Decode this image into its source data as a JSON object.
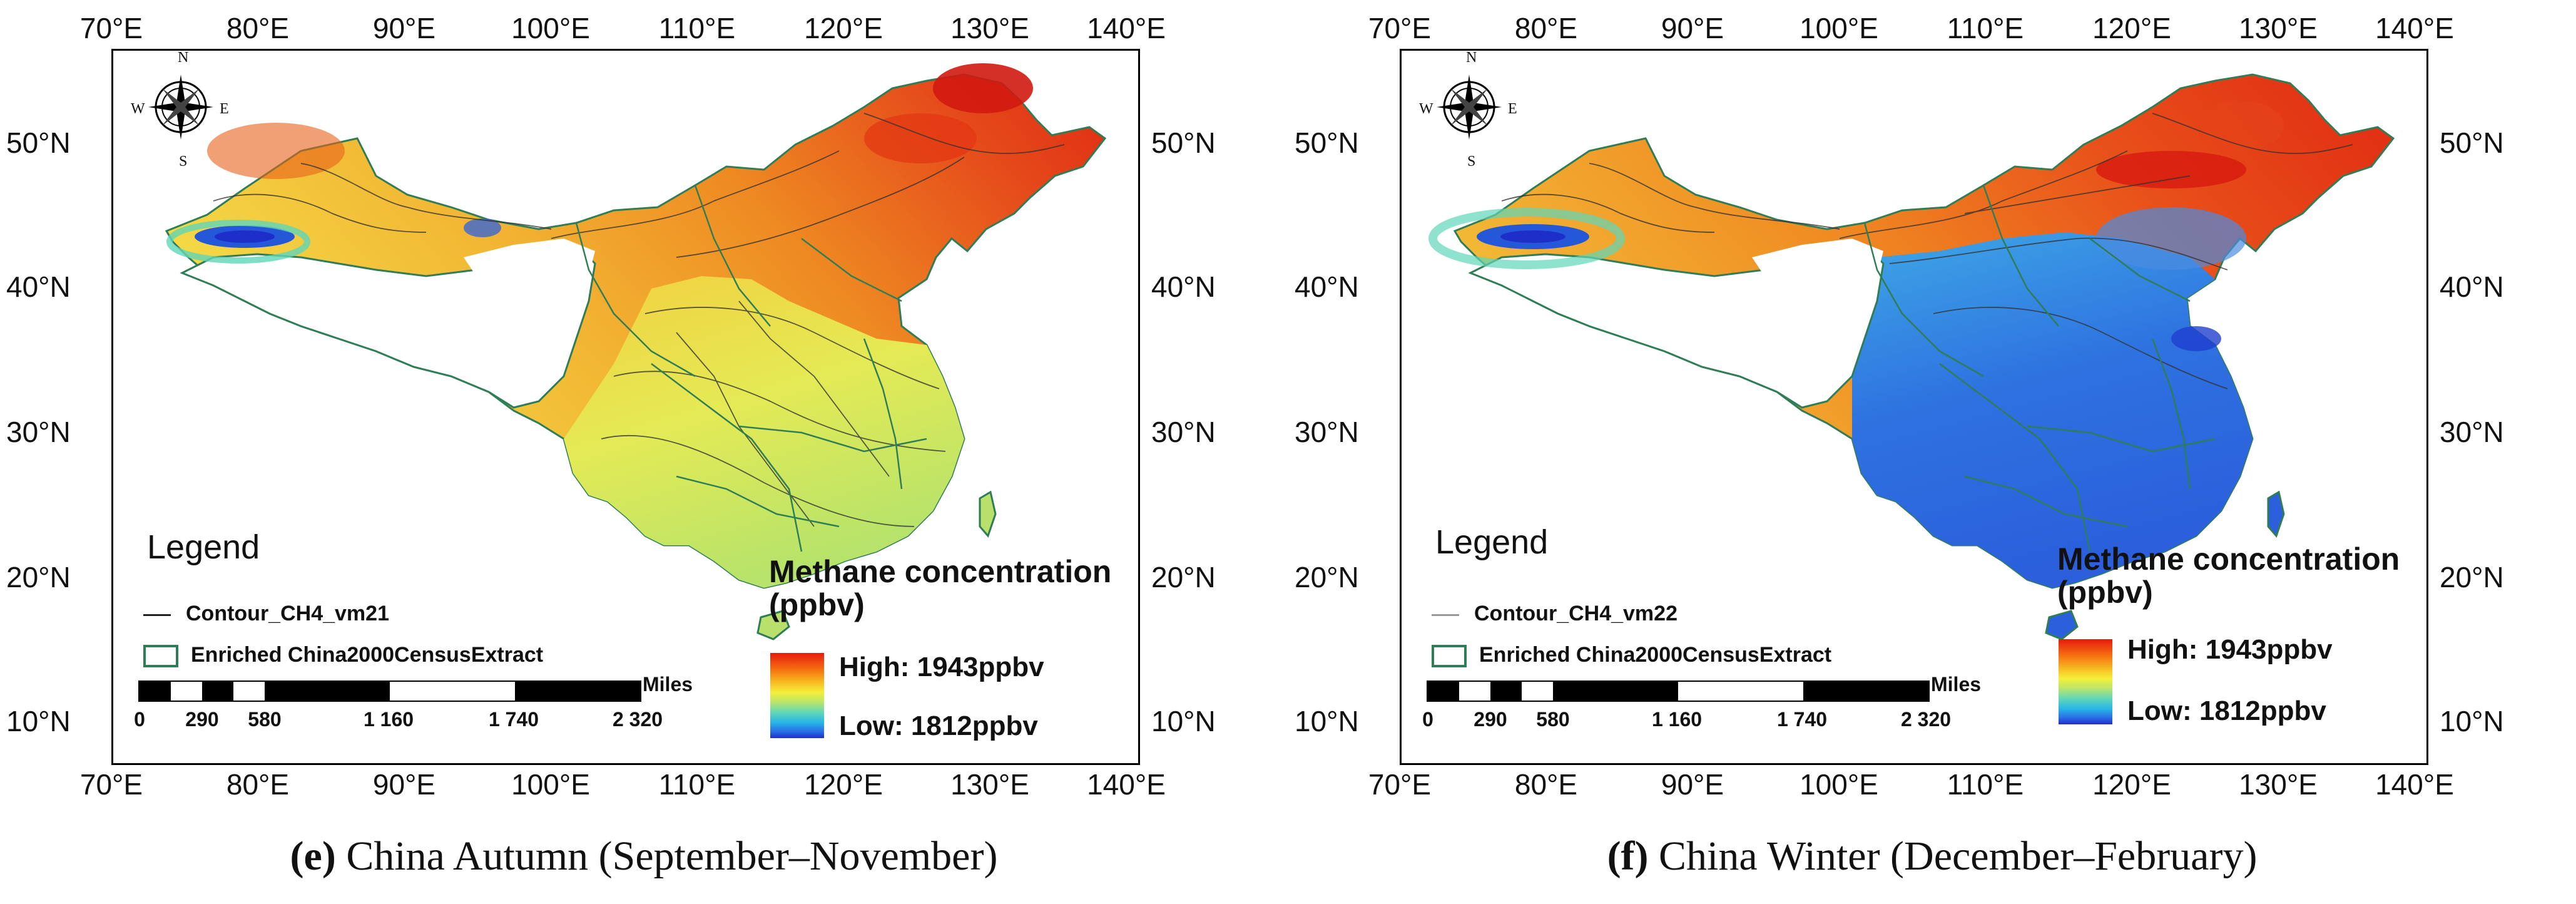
{
  "axes": {
    "longitude_ticks": [
      "70°E",
      "80°E",
      "90°E",
      "100°E",
      "110°E",
      "120°E",
      "130°E",
      "140°E"
    ],
    "latitude_ticks": [
      "50°N",
      "40°N",
      "30°N",
      "20°N",
      "10°N"
    ]
  },
  "panels": [
    {
      "caption_letter": "(e)",
      "caption_text": " China Autumn (September–November)",
      "season": "autumn",
      "legend": {
        "title": "Legend",
        "contour_label": "Contour_CH4_vm21",
        "boundary_label": "Enriched China2000CensusExtract",
        "scale_unit": "Miles",
        "scale_labels": [
          "0",
          "290",
          "580",
          "1 160",
          "1 740",
          "2 320"
        ],
        "colorbar_title_line1": "Methane concentration",
        "colorbar_title_line2": "(ppbv)",
        "high_label": "High: 1943ppbv",
        "low_label": "Low: 1812ppbv"
      },
      "compass": {
        "n": "N",
        "s": "S",
        "e": "E",
        "w": "W"
      }
    },
    {
      "caption_letter": "(f)",
      "caption_text": " China Winter (December–February)",
      "season": "winter",
      "legend": {
        "title": "Legend",
        "contour_label": "Contour_CH4_vm22",
        "boundary_label": "Enriched China2000CensusExtract",
        "scale_unit": "Miles",
        "scale_labels": [
          "0",
          "290",
          "580",
          "1 160",
          "1 740",
          "2 320"
        ],
        "colorbar_title_line1": "Methane concentration",
        "colorbar_title_line2": "(ppbv)",
        "high_label": "High: 1943ppbv",
        "low_label": "Low: 1812ppbv"
      },
      "compass": {
        "n": "N",
        "s": "S",
        "e": "E",
        "w": "W"
      }
    }
  ],
  "colors": {
    "high": "#e51b0e",
    "mid": "#f6ee3a",
    "low": "#1d2fc8",
    "boundary": "#2f7d56"
  }
}
